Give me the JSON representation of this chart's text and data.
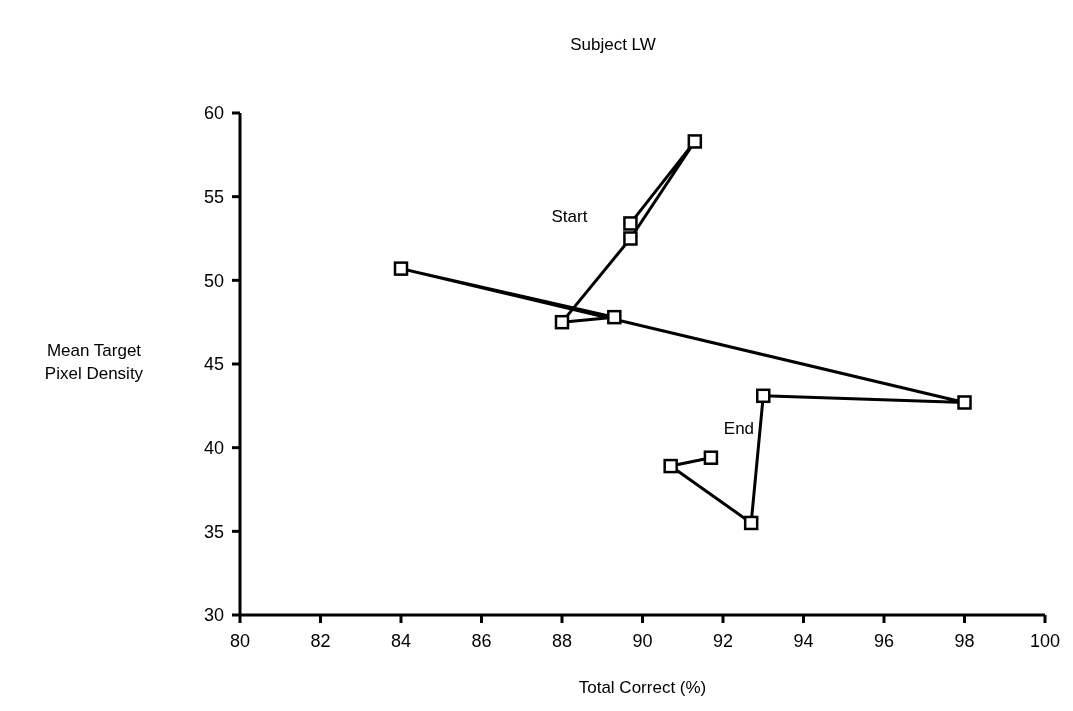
{
  "chart_data": {
    "type": "line",
    "title": "Subject LW",
    "xlabel": "Total Correct (%)",
    "ylabel": "Mean Target Pixel Density",
    "series": [
      {
        "color": "#000000",
        "x": [
          89.7,
          91.3,
          89.7,
          88.0,
          89.3,
          84.0,
          98.0,
          93.0,
          92.7,
          90.7,
          91.7
        ],
        "values": [
          53.4,
          58.3,
          52.5,
          47.5,
          47.8,
          50.7,
          42.7,
          43.1,
          35.5,
          38.9,
          39.4
        ]
      }
    ],
    "xlim": [
      80,
      100
    ],
    "xticks": [
      80,
      82,
      84,
      86,
      88,
      90,
      92,
      94,
      96,
      98,
      100
    ],
    "ylim": [
      30,
      60
    ],
    "yticks": [
      30,
      35,
      40,
      45,
      50,
      55,
      60
    ],
    "marker": "square",
    "line_style": "solid",
    "grid": false,
    "annotations": [
      "Start",
      "End"
    ]
  }
}
